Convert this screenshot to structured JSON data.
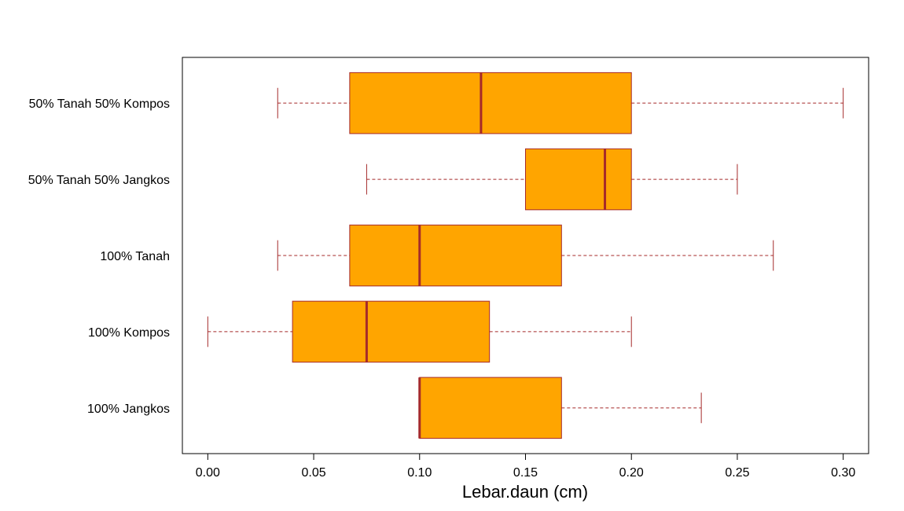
{
  "chart_data": {
    "type": "boxplot",
    "orientation": "horizontal",
    "title": "",
    "xlabel": "Lebar.daun (cm)",
    "ylabel": "",
    "xlim": [
      -0.012,
      0.312
    ],
    "x_ticks": [
      0.0,
      0.05,
      0.1,
      0.15,
      0.2,
      0.25,
      0.3
    ],
    "x_tick_labels": [
      "0.00",
      "0.05",
      "0.10",
      "0.15",
      "0.20",
      "0.25",
      "0.30"
    ],
    "grid": false,
    "legend": "none",
    "colors": {
      "box_fill": "#FFA500",
      "box_border": "#A52A2A",
      "whisker": "#A52A2A",
      "median": "#A52A2A"
    },
    "categories": [
      "100% Jangkos",
      "100% Kompos",
      "100% Tanah",
      "50% Tanah 50% Jangkos",
      "50% Tanah 50% Kompos"
    ],
    "boxes": [
      {
        "min": 0.1,
        "q1": 0.1,
        "median": 0.1,
        "q3": 0.167,
        "max": 0.233
      },
      {
        "min": 0.0,
        "q1": 0.04,
        "median": 0.075,
        "q3": 0.133,
        "max": 0.2
      },
      {
        "min": 0.033,
        "q1": 0.067,
        "median": 0.1,
        "q3": 0.167,
        "max": 0.267
      },
      {
        "min": 0.075,
        "q1": 0.15,
        "median": 0.1875,
        "q3": 0.2,
        "max": 0.25
      },
      {
        "min": 0.033,
        "q1": 0.067,
        "median": 0.129,
        "q3": 0.2,
        "max": 0.3
      }
    ]
  }
}
